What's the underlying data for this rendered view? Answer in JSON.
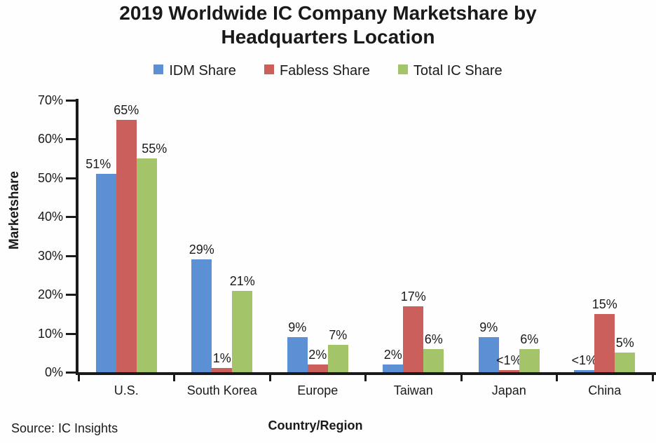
{
  "title": "2019 Worldwide IC Company Marketshare by Headquarters Location",
  "source_note": "Source: IC Insights",
  "chart_data": {
    "type": "bar",
    "title": "2019 Worldwide IC Company Marketshare by Headquarters Location",
    "categories": [
      "U.S.",
      "South Korea",
      "Europe",
      "Taiwan",
      "Japan",
      "China"
    ],
    "series": [
      {
        "name": "IDM Share",
        "color": "#5b90d5",
        "values": [
          51,
          29,
          9,
          2,
          9,
          0.5
        ],
        "value_labels": [
          "51%",
          "29%",
          "9%",
          "2%",
          "9%",
          "<1%"
        ]
      },
      {
        "name": "Fabless Share",
        "color": "#cb5f5c",
        "values": [
          65,
          1,
          2,
          17,
          0.5,
          15
        ],
        "value_labels": [
          "65%",
          "1%",
          "2%",
          "17%",
          "<1%",
          "15%"
        ]
      },
      {
        "name": "Total IC Share",
        "color": "#a4c469",
        "values": [
          55,
          21,
          7,
          6,
          6,
          5
        ],
        "value_labels": [
          "55%",
          "21%",
          "7%",
          "6%",
          "6%",
          "5%"
        ]
      }
    ],
    "xlabel": "Country/Region",
    "ylabel": "Marketshare",
    "ylim": [
      0,
      70
    ],
    "ytick_step": 10,
    "ytick_suffix": "%",
    "legend_position": "top",
    "grid": false,
    "axis_color": "#1a1a1a"
  }
}
